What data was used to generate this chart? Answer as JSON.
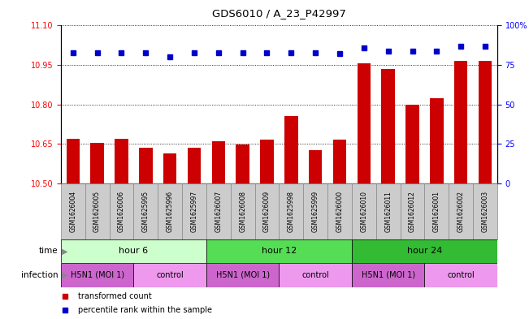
{
  "title": "GDS6010 / A_23_P42997",
  "samples": [
    "GSM1626004",
    "GSM1626005",
    "GSM1626006",
    "GSM1625995",
    "GSM1625996",
    "GSM1625997",
    "GSM1626007",
    "GSM1626008",
    "GSM1626009",
    "GSM1625998",
    "GSM1625999",
    "GSM1626000",
    "GSM1626010",
    "GSM1626011",
    "GSM1626012",
    "GSM1626001",
    "GSM1626002",
    "GSM1626003"
  ],
  "bar_values": [
    10.67,
    10.655,
    10.67,
    10.635,
    10.615,
    10.635,
    10.66,
    10.648,
    10.665,
    10.755,
    10.625,
    10.665,
    10.955,
    10.935,
    10.8,
    10.825,
    10.965,
    10.965
  ],
  "percentile_values": [
    83,
    83,
    83,
    83,
    80,
    83,
    83,
    83,
    83,
    83,
    83,
    82,
    86,
    84,
    84,
    84,
    87,
    87
  ],
  "ylim_left": [
    10.5,
    11.1
  ],
  "ylim_right": [
    0,
    100
  ],
  "yticks_left": [
    10.5,
    10.65,
    10.8,
    10.95,
    11.1
  ],
  "yticks_right": [
    0,
    25,
    50,
    75,
    100
  ],
  "ytick_labels_right": [
    "0",
    "25",
    "50",
    "75",
    "100%"
  ],
  "bar_color": "#cc0000",
  "dot_color": "#0000cc",
  "time_groups": [
    {
      "label": "hour 6",
      "start": 0,
      "end": 6,
      "color": "#ccffcc"
    },
    {
      "label": "hour 12",
      "start": 6,
      "end": 12,
      "color": "#55dd55"
    },
    {
      "label": "hour 24",
      "start": 12,
      "end": 18,
      "color": "#33bb33"
    }
  ],
  "infection_groups": [
    {
      "label": "H5N1 (MOI 1)",
      "start": 0,
      "end": 3,
      "color": "#cc66cc"
    },
    {
      "label": "control",
      "start": 3,
      "end": 6,
      "color": "#ee99ee"
    },
    {
      "label": "H5N1 (MOI 1)",
      "start": 6,
      "end": 9,
      "color": "#cc66cc"
    },
    {
      "label": "control",
      "start": 9,
      "end": 12,
      "color": "#ee99ee"
    },
    {
      "label": "H5N1 (MOI 1)",
      "start": 12,
      "end": 15,
      "color": "#cc66cc"
    },
    {
      "label": "control",
      "start": 15,
      "end": 18,
      "color": "#ee99ee"
    }
  ],
  "sample_box_color": "#cccccc",
  "legend_items": [
    {
      "label": "transformed count",
      "color": "#cc0000"
    },
    {
      "label": "percentile rank within the sample",
      "color": "#0000cc"
    }
  ]
}
